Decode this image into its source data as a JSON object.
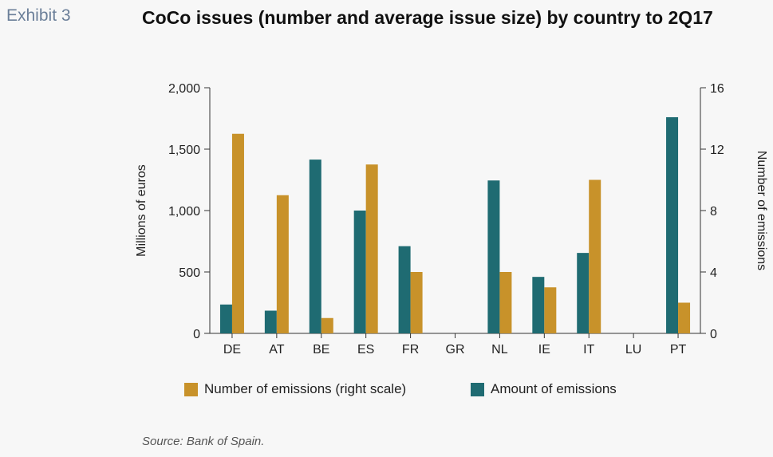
{
  "header": {
    "exhibit": "Exhibit 3",
    "title": "CoCo issues (number and average issue size) by country to 2Q17"
  },
  "footer": {
    "source": "Source: Bank of Spain."
  },
  "colors": {
    "emissions_number": "#c8922a",
    "emissions_amount": "#1f6b72"
  },
  "chart_data": {
    "type": "bar",
    "categories": [
      "DE",
      "AT",
      "BE",
      "ES",
      "FR",
      "GR",
      "NL",
      "IE",
      "IT",
      "LU",
      "PT"
    ],
    "series": [
      {
        "name": "Amount of emissions",
        "axis": "left",
        "values": [
          235,
          185,
          1415,
          1000,
          710,
          0,
          1245,
          460,
          655,
          0,
          1760
        ]
      },
      {
        "name": "Number of emissions (right scale)",
        "axis": "right",
        "values": [
          13,
          9,
          1,
          11,
          4,
          0,
          4,
          3,
          10,
          0,
          2
        ]
      }
    ],
    "ylabel": "Millions of euros",
    "y2label": "Number of emissions",
    "ylim": [
      0,
      2000
    ],
    "y2lim": [
      0,
      16
    ],
    "yticks": [
      "0",
      "500",
      "1,000",
      "1,500",
      "2,000"
    ],
    "y2ticks": [
      "0",
      "4",
      "8",
      "12",
      "16"
    ],
    "legend_position": "bottom",
    "grid": false
  }
}
